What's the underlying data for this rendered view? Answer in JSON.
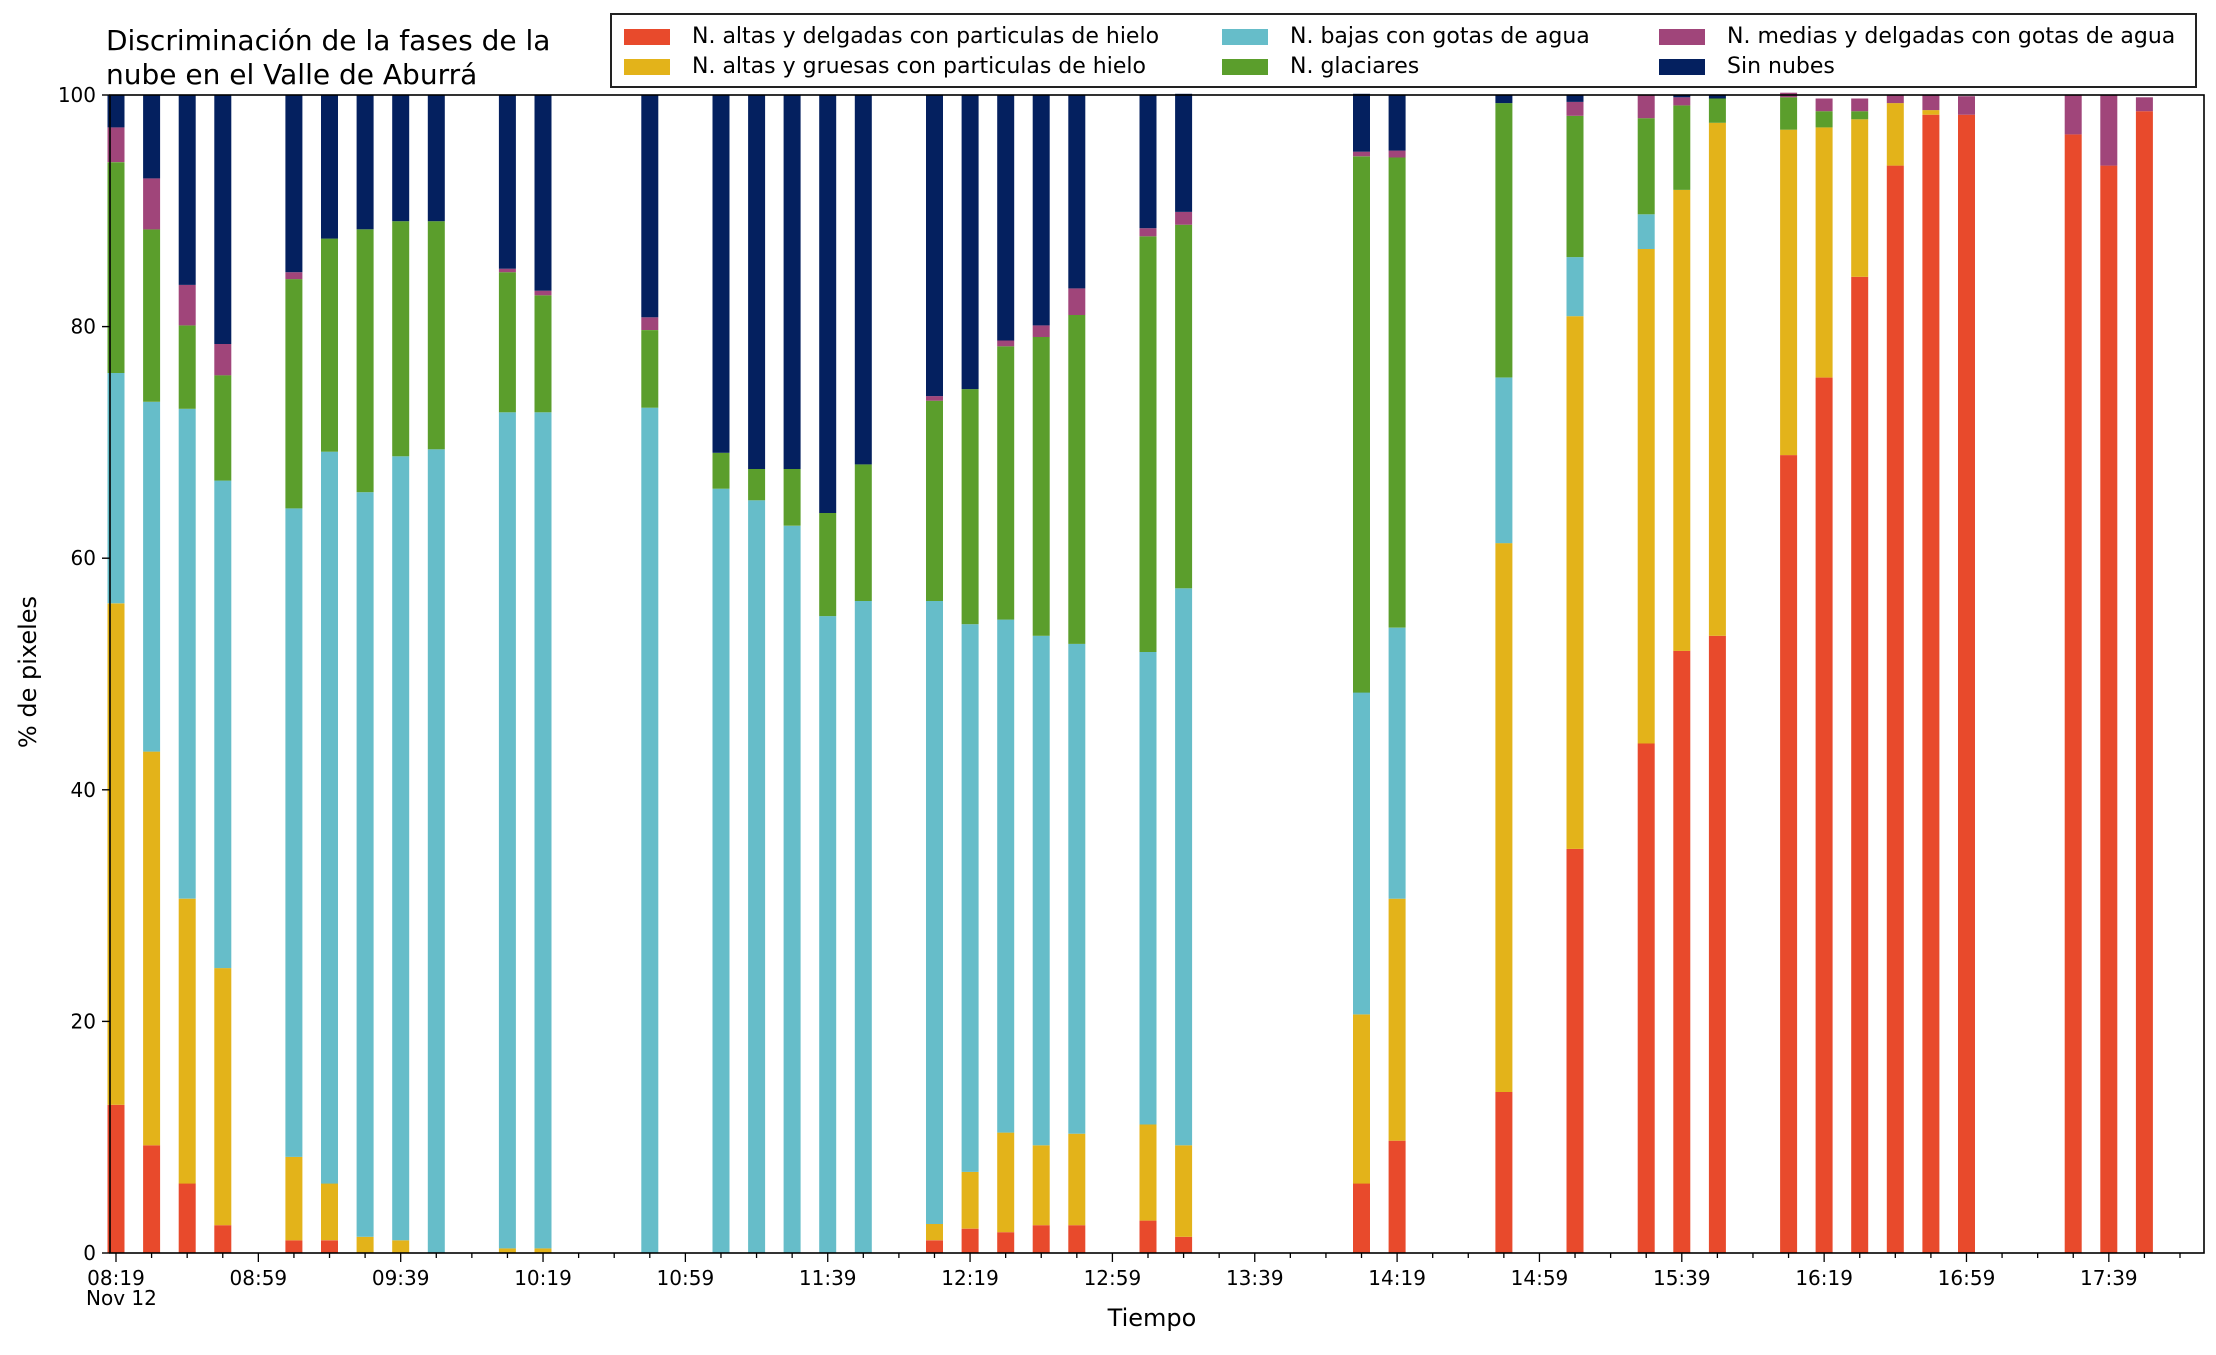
{
  "title_line1": "Discriminación de la fases de la",
  "title_line2": "nube en el Valle de Aburrá",
  "chart_data": {
    "type": "bar",
    "stacked": true,
    "ylabel": "% de pixeles",
    "xlabel": "Tiempo",
    "x_sublabel": "Nov 12",
    "ylim": [
      0,
      100
    ],
    "yticks": [
      0,
      20,
      40,
      60,
      80,
      100
    ],
    "xtick_labels": [
      "08:19",
      "08:59",
      "09:39",
      "10:19",
      "10:59",
      "11:39",
      "12:19",
      "12:59",
      "13:39",
      "14:19",
      "14:59",
      "15:39",
      "16:19",
      "16:59",
      "17:39"
    ],
    "interval_minutes": 10,
    "x_start": "08:19",
    "x_end": "17:59",
    "grid": false,
    "legend_position": "top",
    "times": [
      "08:19",
      "08:29",
      "08:39",
      "08:49",
      "09:09",
      "09:19",
      "09:29",
      "09:39",
      "09:49",
      "10:09",
      "10:19",
      "10:49",
      "11:09",
      "11:19",
      "11:29",
      "11:39",
      "11:49",
      "12:09",
      "12:19",
      "12:29",
      "12:39",
      "12:49",
      "13:09",
      "13:19",
      "14:09",
      "14:19",
      "14:49",
      "15:09",
      "15:29",
      "15:39",
      "15:49",
      "16:09",
      "16:19",
      "16:29",
      "16:39",
      "16:49",
      "16:59",
      "17:29",
      "17:39",
      "17:49"
    ],
    "series": [
      {
        "name": "N. altas y delgadas con particulas de hielo",
        "color": "#e84a2c",
        "values": [
          12.8,
          9.3,
          6.0,
          2.4,
          1.1,
          1.1,
          0,
          0,
          0,
          0,
          0,
          0,
          0,
          0,
          0,
          0,
          0,
          1.1,
          2.1,
          1.8,
          2.4,
          2.4,
          2.8,
          1.4,
          6.0,
          9.7,
          13.9,
          34.9,
          44.0,
          52.0,
          53.3,
          68.9,
          75.6,
          84.3,
          93.9,
          98.3,
          98.3,
          96.6,
          93.9,
          98.6
        ]
      },
      {
        "name": "N. altas y gruesas con particulas de hielo",
        "color": "#e3b31a",
        "values": [
          43.3,
          34.0,
          24.6,
          22.2,
          7.2,
          4.9,
          1.4,
          1.1,
          0,
          0.4,
          0.4,
          0,
          0,
          0,
          0,
          0,
          0,
          1.4,
          4.9,
          8.6,
          6.9,
          7.9,
          8.3,
          7.9,
          14.6,
          20.9,
          47.4,
          46.0,
          42.7,
          39.8,
          44.3,
          28.1,
          21.6,
          13.6,
          5.4,
          0.4,
          0,
          0,
          0,
          0
        ]
      },
      {
        "name": "N. bajas con gotas de agua",
        "color": "#66bdc9",
        "values": [
          19.9,
          30.2,
          42.3,
          42.1,
          56.0,
          63.2,
          64.3,
          67.7,
          69.4,
          72.2,
          72.2,
          73.0,
          66.0,
          65.0,
          62.8,
          55.0,
          56.3,
          53.8,
          47.3,
          44.3,
          44.0,
          42.3,
          40.8,
          48.1,
          27.8,
          23.4,
          14.3,
          5.1,
          3.0,
          0,
          0,
          0,
          0,
          0,
          0,
          0,
          0,
          0,
          0,
          0
        ]
      },
      {
        "name": "N. glaciares",
        "color": "#5b9e2c",
        "values": [
          18.2,
          14.9,
          7.2,
          9.1,
          19.8,
          18.4,
          22.7,
          20.3,
          19.7,
          12.1,
          10.1,
          6.7,
          3.1,
          2.7,
          4.9,
          8.9,
          11.8,
          17.3,
          20.3,
          23.6,
          25.8,
          28.4,
          35.9,
          31.4,
          46.3,
          40.6,
          23.7,
          12.2,
          8.3,
          7.3,
          2.1,
          2.8,
          1.4,
          0.7,
          0,
          0,
          0,
          0,
          0,
          0
        ]
      },
      {
        "name": "N. medias y delgadas con gotas de agua",
        "color": "#a0457a",
        "values": [
          3.0,
          4.4,
          3.5,
          2.7,
          0.6,
          0,
          0,
          0,
          0,
          0.3,
          0.4,
          1.1,
          0,
          0,
          0,
          0,
          0,
          0.4,
          0,
          0.5,
          1.0,
          2.3,
          0.7,
          1.1,
          0.4,
          0.6,
          0,
          1.2,
          2.0,
          0.7,
          0,
          0.4,
          1.1,
          1.1,
          0.7,
          1.3,
          1.6,
          3.4,
          6.1,
          1.2
        ]
      },
      {
        "name": "Sin nubes",
        "color": "#04205f",
        "values": [
          2.8,
          7.2,
          16.4,
          21.5,
          15.3,
          12.4,
          11.6,
          10.9,
          10.9,
          15.0,
          16.9,
          19.2,
          30.9,
          32.3,
          32.3,
          36.1,
          31.9,
          26.0,
          25.4,
          21.2,
          19.9,
          16.7,
          11.5,
          10.2,
          5.0,
          4.8,
          0.7,
          0.6,
          0,
          0.2,
          0.3,
          0,
          0,
          0,
          0,
          0,
          0,
          0,
          0,
          0
        ]
      }
    ]
  }
}
